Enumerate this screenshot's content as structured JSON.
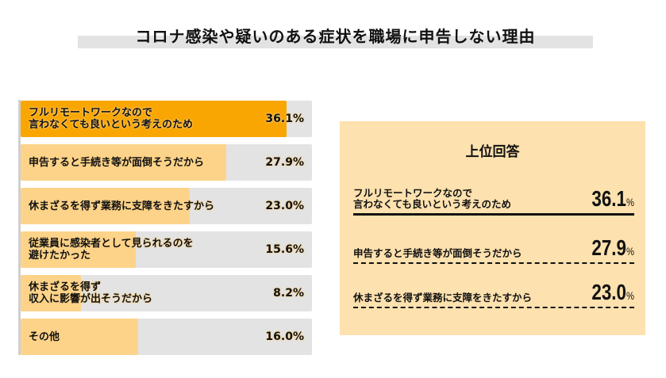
{
  "title": "コロナ感染や疑いのある症状を職場に申告しない理由",
  "colors": {
    "highlight_bar": "#f9a602",
    "bar": "#fdd389",
    "track": "#e3e3e3",
    "panel": "#fde1ae"
  },
  "chart_data": {
    "type": "bar",
    "orientation": "horizontal",
    "title": "コロナ感染や疑いのある症状を職場に申告しない理由",
    "categories": [
      "フルリモートワークなので\n言わなくても良いという考えのため",
      "申告すると手続き等が面倒そうだから",
      "休まざるを得ず業務に支障をきたすから",
      "従業員に感染者として見られるのを\n避けたかった",
      "休まざるを得ず\n収入に影響が出そうだから",
      "その他"
    ],
    "values": [
      36.1,
      27.9,
      23.0,
      15.6,
      8.2,
      16.0
    ],
    "value_labels": [
      "36.1%",
      "27.9%",
      "23.0%",
      "15.6%",
      "8.2%",
      "16.0%"
    ],
    "unit": "%",
    "xlim": [
      0,
      39.6
    ]
  },
  "panel": {
    "title": "上位回答",
    "items": [
      {
        "label": "フルリモートワークなので\n言わなくても良いという考えのため",
        "value": "36.1",
        "unit": "%"
      },
      {
        "label": "申告すると手続き等が面倒そうだから",
        "value": "27.9",
        "unit": "%"
      },
      {
        "label": "休まざるを得ず業務に支障をきたすから",
        "value": "23.0",
        "unit": "%"
      }
    ]
  }
}
